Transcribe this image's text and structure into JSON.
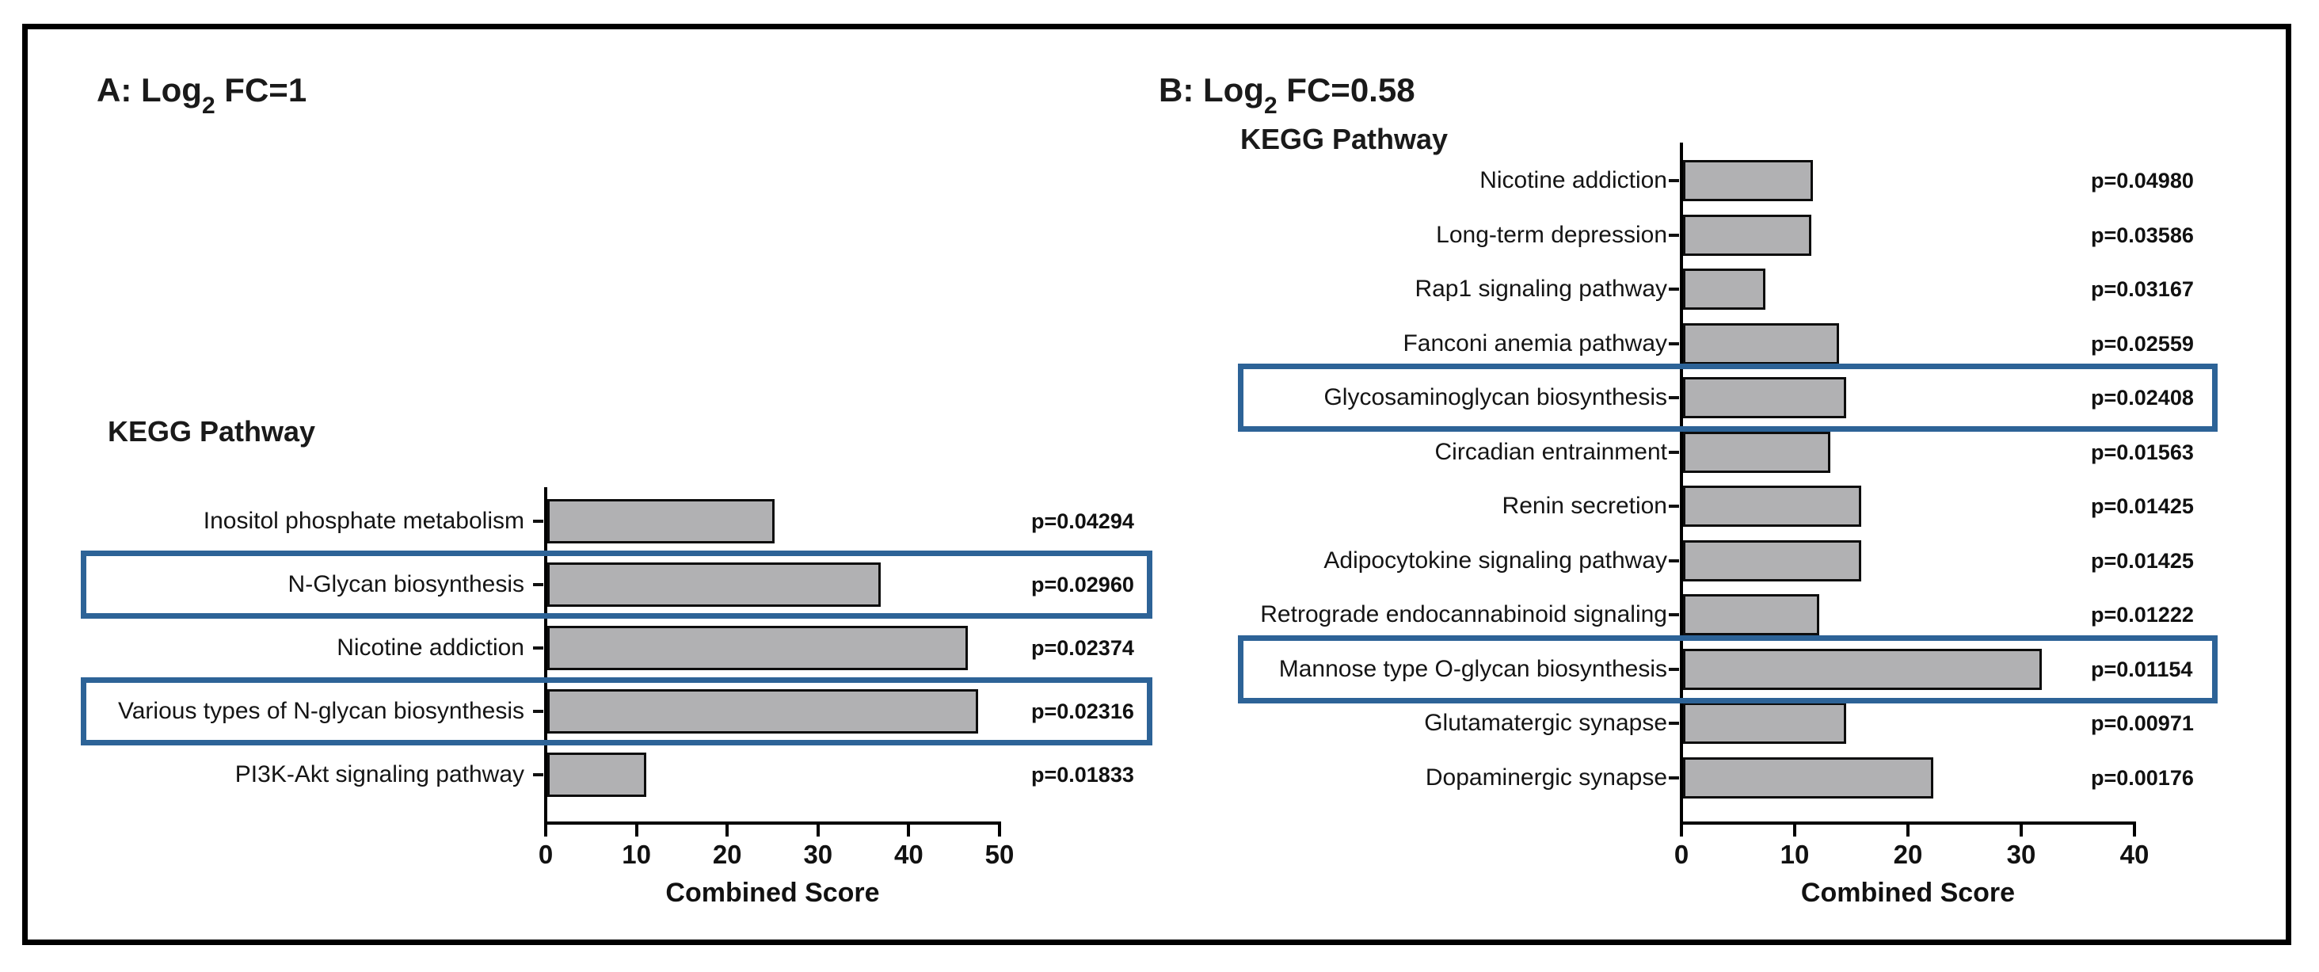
{
  "colors": {
    "bar_fill": "#b1b1b3",
    "bar_border": "#0d0d0d",
    "highlight_box_blue": "#2d6397",
    "figure_border": "#000000",
    "text": "#1a1a1a"
  },
  "chart_data": [
    {
      "type": "bar",
      "orientation": "horizontal",
      "panel": "A",
      "title_prefix": "A: Log",
      "title_sub": "2",
      "title_suffix": " FC=1",
      "group_label": "KEGG Pathway",
      "xlabel": "Combined Score",
      "xlim": [
        0,
        50
      ],
      "x_ticks": [
        0,
        10,
        20,
        30,
        40,
        50
      ],
      "grid": false,
      "categories": [
        "Inositol phosphate metabolism",
        "N-Glycan biosynthesis",
        "Nicotine addiction",
        "Various types of N-glycan biosynthesis",
        "PI3K-Akt signaling pathway"
      ],
      "values": [
        25.0,
        36.7,
        46.3,
        47.5,
        10.9
      ],
      "p_labels": [
        "p=0.04294",
        "p=0.02960",
        "p=0.02374",
        "p=0.02316",
        "p=0.01833"
      ],
      "highlighted": [
        false,
        true,
        false,
        true,
        false
      ]
    },
    {
      "type": "bar",
      "orientation": "horizontal",
      "panel": "B",
      "title_prefix": "B: Log",
      "title_sub": "2",
      "title_suffix": " FC=0.58",
      "group_label": "KEGG Pathway",
      "xlabel": "Combined Score",
      "xlim": [
        0,
        40
      ],
      "x_ticks": [
        0,
        10,
        20,
        30,
        40
      ],
      "grid": false,
      "categories": [
        "Nicotine addiction",
        "Long-term depression",
        "Rap1 signaling pathway",
        "Fanconi anemia pathway",
        "Glycosaminoglycan biosynthesis",
        "Circadian entrainment",
        "Renin secretion",
        "Adipocytokine signaling pathway",
        "Retrograde endocannabinoid signaling",
        "Mannose type O-glycan biosynthesis",
        "Glutamatergic synapse",
        "Dopaminergic synapse"
      ],
      "values": [
        11.5,
        11.3,
        7.3,
        13.8,
        14.4,
        13.0,
        15.7,
        15.7,
        12.0,
        31.7,
        14.4,
        22.1
      ],
      "p_labels": [
        "p=0.04980",
        "p=0.03586",
        "p=0.03167",
        "p=0.02559",
        "p=0.02408",
        "p=0.01563",
        "p=0.01425",
        "p=0.01425",
        "p=0.01222",
        "p=0.01154",
        "p=0.00971",
        "p=0.00176"
      ],
      "highlighted": [
        false,
        false,
        false,
        false,
        true,
        false,
        false,
        false,
        false,
        true,
        false,
        false
      ]
    }
  ]
}
